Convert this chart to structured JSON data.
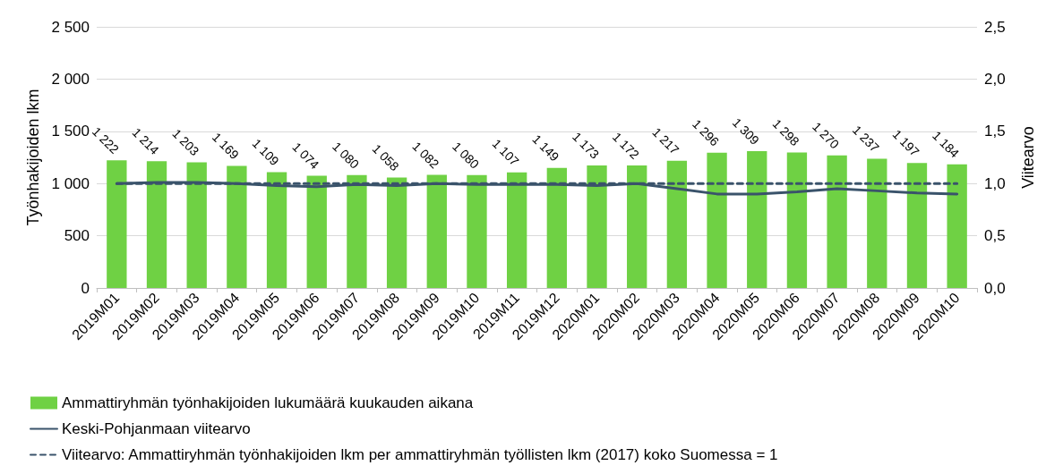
{
  "chart_data": {
    "type": "bar",
    "categories": [
      "2019M01",
      "2019M02",
      "2019M03",
      "2019M04",
      "2019M05",
      "2019M06",
      "2019M07",
      "2019M08",
      "2019M09",
      "2019M10",
      "2019M11",
      "2019M12",
      "2020M01",
      "2020M02",
      "2020M03",
      "2020M04",
      "2020M05",
      "2020M06",
      "2020M07",
      "2020M08",
      "2020M09",
      "2020M10"
    ],
    "series": [
      {
        "name": "Ammattiryhmän työnhakijoiden lukumäärä kuukauden aikana",
        "color": "#6fd144",
        "data_labels": true,
        "values": [
          1222,
          1214,
          1203,
          1169,
          1109,
          1074,
          1080,
          1058,
          1082,
          1080,
          1107,
          1149,
          1173,
          1172,
          1217,
          1296,
          1309,
          1298,
          1270,
          1237,
          1197,
          1184
        ]
      },
      {
        "name": "Keski-Pohjanmaan viitearvo",
        "type": "line",
        "axis": "y2",
        "color": "#3a536b",
        "line_style": "solid",
        "values": [
          1.0,
          1.01,
          1.01,
          1.0,
          0.98,
          0.97,
          0.99,
          0.98,
          1.0,
          0.99,
          0.99,
          0.99,
          0.98,
          1.0,
          0.95,
          0.9,
          0.9,
          0.92,
          0.95,
          0.93,
          0.91,
          0.9
        ]
      },
      {
        "name": "Viitearvo: Ammattiryhmän työnhakijoiden lkm per ammattiryhmän työllisten lkm (2017) koko Suomessa = 1",
        "type": "line",
        "axis": "y2",
        "color": "#3a536b",
        "line_style": "dashed",
        "values": [
          1,
          1,
          1,
          1,
          1,
          1,
          1,
          1,
          1,
          1,
          1,
          1,
          1,
          1,
          1,
          1,
          1,
          1,
          1,
          1,
          1,
          1
        ]
      }
    ],
    "ylabel": "Työnhakijoiden lkm",
    "y2label": "Viitearvo",
    "ylim": [
      0,
      2500
    ],
    "yticks": [
      0,
      500,
      {
        "value": 1000,
        "label": "1 000"
      },
      {
        "value": 1500,
        "label": "1 500"
      },
      {
        "value": 2000,
        "label": "2 000"
      },
      {
        "value": 2500,
        "label": "2 500"
      }
    ],
    "y2lim": [
      0,
      2.5
    ],
    "y2ticks": [
      {
        "value": 0,
        "label": "0,0"
      },
      {
        "value": 0.5,
        "label": "0,5"
      },
      {
        "value": 1,
        "label": "1,0"
      },
      {
        "value": 1.5,
        "label": "1,5"
      },
      {
        "value": 2,
        "label": "2,0"
      },
      {
        "value": 2.5,
        "label": "2,5"
      }
    ],
    "grid": "y",
    "legend": "bottom left",
    "marker": "none"
  }
}
